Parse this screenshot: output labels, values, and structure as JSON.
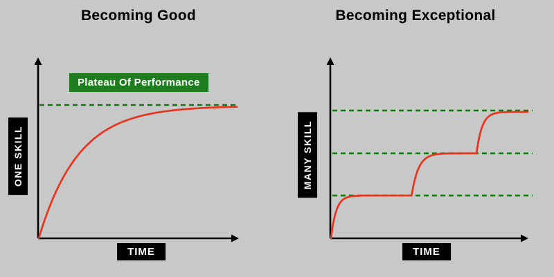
{
  "background_color": "#c8c8c8",
  "colors": {
    "curve": "#e8341c",
    "plateau_line": "#117a11",
    "plateau_label_bg": "#1e7d1e",
    "axis": "#000000",
    "label_box_bg": "#000000",
    "label_text": "#ffffff",
    "title_text": "#000000"
  },
  "left_chart": {
    "title": "Becoming Good",
    "y_axis_label": "ONE SKILL",
    "x_axis_label": "TIME",
    "plateau_label": "Plateau Of Performance",
    "plateau_levels": [
      0.751
    ],
    "curve_stages": [
      {
        "x_start": 0.0,
        "rise_end": 1.0,
        "x_end": 1.0,
        "level": 0.746
      }
    ]
  },
  "right_chart": {
    "title": "Becoming Exceptional",
    "y_axis_label": "MANY SKILL",
    "x_axis_label": "TIME",
    "plateau_levels": [
      0.241,
      0.479,
      0.72
    ],
    "curve_stages": [
      {
        "x_start": 0.0,
        "rise_end": 0.13,
        "x_end": 0.41,
        "level": 0.241
      },
      {
        "x_start": 0.41,
        "rise_end": 0.58,
        "x_end": 0.74,
        "level": 0.479
      },
      {
        "x_start": 0.74,
        "rise_end": 0.88,
        "x_end": 1.0,
        "level": 0.712
      }
    ]
  },
  "chart_data": [
    {
      "type": "line",
      "title": "Becoming Good",
      "xlabel": "TIME",
      "ylabel": "ONE SKILL",
      "annotations": [
        "Plateau Of Performance"
      ],
      "series": [
        {
          "name": "one-skill-progress",
          "shape": "saturating exponential rising from origin and flattening at a single plateau"
        }
      ],
      "plateau_levels_fraction_of_axis": [
        0.75
      ],
      "grid": false,
      "legend": false
    },
    {
      "type": "line",
      "title": "Becoming Exceptional",
      "xlabel": "TIME",
      "ylabel": "MANY SKILL",
      "annotations": [],
      "series": [
        {
          "name": "many-skill-progress",
          "shape": "staircase of three saturating rises, each flattening at successively higher dashed plateau lines"
        }
      ],
      "plateau_levels_fraction_of_axis": [
        0.24,
        0.48,
        0.72
      ],
      "grid": false,
      "legend": false
    }
  ]
}
